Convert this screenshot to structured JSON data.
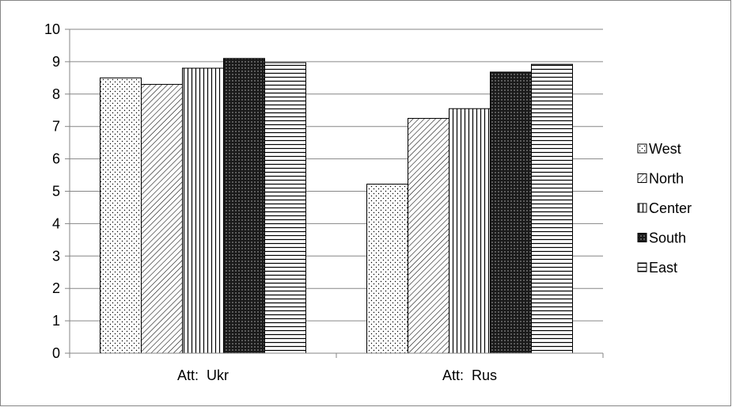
{
  "chart_data": {
    "type": "bar",
    "categories": [
      "Att:  Ukr",
      "Att:  Rus"
    ],
    "series": [
      {
        "name": "West",
        "values": [
          8.5,
          5.22
        ],
        "pattern": "dots"
      },
      {
        "name": "North",
        "values": [
          8.3,
          7.25
        ],
        "pattern": "diagonal"
      },
      {
        "name": "Center",
        "values": [
          8.8,
          7.55
        ],
        "pattern": "vertical"
      },
      {
        "name": "South",
        "values": [
          9.1,
          8.68
        ],
        "pattern": "crosshatch"
      },
      {
        "name": "East",
        "values": [
          8.97,
          8.92
        ],
        "pattern": "horizontal"
      }
    ],
    "ylim": [
      0,
      10
    ],
    "yticks": [
      "0",
      "1",
      "2",
      "3",
      "4",
      "5",
      "6",
      "7",
      "8",
      "9",
      "10"
    ],
    "grid": true,
    "legend_position": "right",
    "title": "",
    "xlabel": "",
    "ylabel": "",
    "colors": {
      "stroke": "#000000",
      "grid": "#868686",
      "background": "#ffffff"
    }
  }
}
